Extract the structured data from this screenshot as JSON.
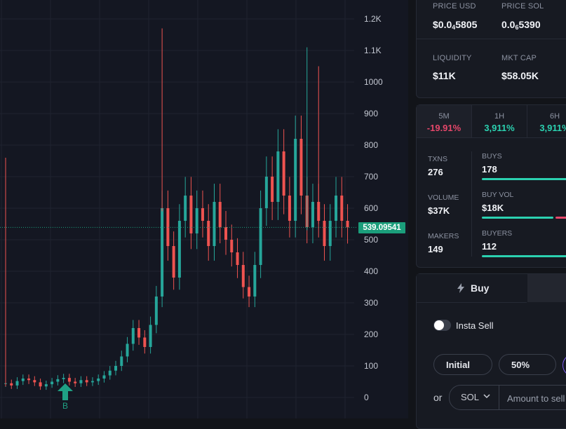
{
  "token": {
    "price_usd_label": "PRICE USD",
    "price_usd_prefix": "$0.0",
    "price_usd_sub": "4",
    "price_usd_suffix": "5805",
    "price_sol_label": "PRICE SOL",
    "price_sol_prefix": "0.0",
    "price_sol_sub": "6",
    "price_sol_suffix": "5390",
    "liquidity_label": "LIQUIDITY",
    "liquidity_value": "$11K",
    "mktcap_label": "MKT CAP",
    "mktcap_value": "$58.05K"
  },
  "timeframes": [
    {
      "label": "5M",
      "value": "-19.91%"
    },
    {
      "label": "1H",
      "value": "3,911%"
    },
    {
      "label": "6H",
      "value": "3,911%"
    }
  ],
  "stats": {
    "txns_label": "TXNS",
    "txns_value": "276",
    "volume_label": "VOLUME",
    "volume_value": "$37K",
    "makers_label": "MAKERS",
    "makers_value": "149",
    "buys_label": "BUYS",
    "buys_value": "178",
    "buyvol_label": "BUY VOL",
    "buyvol_value": "$18K",
    "buyers_label": "BUYERS",
    "buyers_value": "112"
  },
  "trade": {
    "buy_tab": "Buy",
    "insta_sell": "Insta Sell",
    "initial": "Initial",
    "pct50": "50%",
    "or": "or",
    "currency": "SOL",
    "amount_placeholder": "Amount to sell"
  },
  "colors": {
    "up": "#26a69a",
    "down": "#ef5350",
    "accent": "#1b9e7b",
    "negative": "#e5476a",
    "positive": "#2bd1b0"
  },
  "chart_data": {
    "type": "candlestick",
    "current_price_label": "539.09541",
    "current_price": 539.1,
    "buy_marker_label": "B",
    "y_ticks": [
      "0",
      "100",
      "200",
      "300",
      "400",
      "500",
      "600",
      "700",
      "800",
      "900",
      "1000",
      "1.1K",
      "1.2K"
    ],
    "ylim": [
      0,
      1200
    ],
    "points": [
      {
        "x": 0,
        "y": 45
      },
      {
        "x": 1,
        "y": 38
      },
      {
        "x": 2,
        "y": 52
      },
      {
        "x": 3,
        "y": 60
      },
      {
        "x": 4,
        "y": 55
      },
      {
        "x": 5,
        "y": 48
      },
      {
        "x": 6,
        "y": 35
      },
      {
        "x": 7,
        "y": 42
      },
      {
        "x": 8,
        "y": 50
      },
      {
        "x": 9,
        "y": 58
      },
      {
        "x": 10,
        "y": 62
      },
      {
        "x": 11,
        "y": 50
      },
      {
        "x": 12,
        "y": 45
      },
      {
        "x": 13,
        "y": 55
      },
      {
        "x": 14,
        "y": 48
      },
      {
        "x": 15,
        "y": 52
      },
      {
        "x": 16,
        "y": 60
      },
      {
        "x": 17,
        "y": 70
      },
      {
        "x": 18,
        "y": 85
      },
      {
        "x": 19,
        "y": 100
      },
      {
        "x": 20,
        "y": 130
      },
      {
        "x": 21,
        "y": 170
      },
      {
        "x": 22,
        "y": 220
      },
      {
        "x": 23,
        "y": 190
      },
      {
        "x": 24,
        "y": 160
      },
      {
        "x": 25,
        "y": 230
      },
      {
        "x": 26,
        "y": 320
      },
      {
        "x": 27,
        "y": 600
      },
      {
        "x": 28,
        "y": 480
      },
      {
        "x": 29,
        "y": 380
      },
      {
        "x": 30,
        "y": 560
      },
      {
        "x": 31,
        "y": 640
      },
      {
        "x": 32,
        "y": 520
      },
      {
        "x": 33,
        "y": 600
      },
      {
        "x": 34,
        "y": 560
      },
      {
        "x": 35,
        "y": 480
      },
      {
        "x": 36,
        "y": 620
      },
      {
        "x": 37,
        "y": 540
      },
      {
        "x": 38,
        "y": 500
      },
      {
        "x": 39,
        "y": 460
      },
      {
        "x": 40,
        "y": 420
      },
      {
        "x": 41,
        "y": 350
      },
      {
        "x": 42,
        "y": 320
      },
      {
        "x": 43,
        "y": 420
      },
      {
        "x": 44,
        "y": 600
      },
      {
        "x": 45,
        "y": 700
      },
      {
        "x": 46,
        "y": 620
      },
      {
        "x": 47,
        "y": 780
      },
      {
        "x": 48,
        "y": 640
      },
      {
        "x": 49,
        "y": 560
      },
      {
        "x": 50,
        "y": 820
      },
      {
        "x": 51,
        "y": 640
      },
      {
        "x": 52,
        "y": 540
      },
      {
        "x": 53,
        "y": 620
      },
      {
        "x": 54,
        "y": 560
      },
      {
        "x": 55,
        "y": 480
      },
      {
        "x": 56,
        "y": 560
      },
      {
        "x": 57,
        "y": 640
      },
      {
        "x": 58,
        "y": 560
      },
      {
        "x": 59,
        "y": 539
      }
    ],
    "spikes": [
      {
        "x": 0,
        "y": 760
      },
      {
        "x": 27,
        "y": 1170
      },
      {
        "x": 52,
        "y": 1110
      },
      {
        "x": 54,
        "y": 1050
      }
    ]
  }
}
